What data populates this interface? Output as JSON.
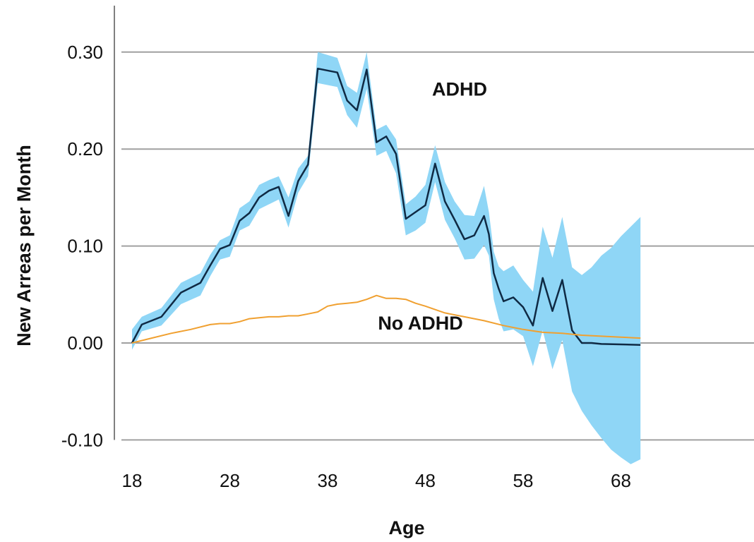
{
  "chart_data": {
    "type": "line",
    "xlabel": "Age",
    "ylabel": "New Arreas per Month",
    "xlim": [
      18,
      70
    ],
    "ylim": [
      -0.1,
      0.3
    ],
    "x_ticks": [
      18,
      28,
      38,
      48,
      58,
      68
    ],
    "y_ticks": [
      0.3,
      0.2,
      0.1,
      0.0,
      -0.1
    ],
    "y_tick_labels": [
      "0.30",
      "0.20",
      "0.10",
      "0.00",
      "-0.10"
    ],
    "grid": true,
    "colors": {
      "adhd_line": "#0f2a44",
      "adhd_band": "#8fd6f6",
      "no_adhd_line": "#f0a030",
      "grid": "#a0a0a0",
      "axis": "#808080"
    },
    "series": [
      {
        "name": "ADHD",
        "x": [
          18,
          19,
          21,
          23,
          25,
          26,
          27,
          28,
          29,
          30,
          31,
          32,
          33,
          34,
          35,
          36,
          37,
          39,
          40,
          41,
          42,
          43,
          44,
          45,
          46,
          47,
          48,
          49,
          50,
          51,
          52,
          53,
          54,
          54.5,
          55,
          55.5,
          56,
          57,
          58,
          59,
          60,
          61,
          62,
          63,
          64,
          65,
          66,
          70
        ],
        "y": [
          0.0,
          0.019,
          0.027,
          0.052,
          0.062,
          0.08,
          0.097,
          0.101,
          0.126,
          0.134,
          0.15,
          0.157,
          0.161,
          0.131,
          0.167,
          0.184,
          0.283,
          0.279,
          0.25,
          0.24,
          0.282,
          0.207,
          0.213,
          0.195,
          0.128,
          0.135,
          0.142,
          0.185,
          0.146,
          0.127,
          0.107,
          0.111,
          0.131,
          0.112,
          0.072,
          0.056,
          0.043,
          0.047,
          0.037,
          0.018,
          0.067,
          0.033,
          0.065,
          0.013,
          0.0,
          0.0,
          -0.001,
          -0.002
        ]
      },
      {
        "name": "No ADHD",
        "x": [
          18,
          20,
          22,
          24,
          26,
          27,
          28,
          29,
          30,
          31,
          32,
          33,
          34,
          35,
          36,
          37,
          38,
          39,
          40,
          41,
          42,
          43,
          44,
          45,
          46,
          47,
          48,
          50,
          52,
          54,
          56,
          58,
          60,
          62,
          64,
          66,
          68,
          70
        ],
        "y": [
          0.0,
          0.005,
          0.01,
          0.014,
          0.019,
          0.02,
          0.02,
          0.022,
          0.025,
          0.026,
          0.027,
          0.027,
          0.028,
          0.028,
          0.03,
          0.032,
          0.038,
          0.04,
          0.041,
          0.042,
          0.045,
          0.049,
          0.046,
          0.046,
          0.045,
          0.041,
          0.038,
          0.031,
          0.027,
          0.023,
          0.018,
          0.014,
          0.011,
          0.01,
          0.008,
          0.007,
          0.006,
          0.005
        ]
      }
    ],
    "confidence_band": {
      "series": "ADHD",
      "x": [
        18,
        19,
        21,
        23,
        25,
        26,
        27,
        28,
        29,
        30,
        31,
        32,
        33,
        34,
        35,
        36,
        37,
        39,
        40,
        41,
        42,
        43,
        44,
        45,
        46,
        47,
        48,
        49,
        50,
        51,
        52,
        53,
        54,
        54.5,
        55,
        55.5,
        56,
        57,
        58,
        59,
        60,
        61,
        62,
        63,
        64,
        65,
        66,
        67,
        68,
        69,
        70
      ],
      "upper": [
        0.014,
        0.027,
        0.036,
        0.062,
        0.072,
        0.091,
        0.106,
        0.111,
        0.139,
        0.146,
        0.163,
        0.168,
        0.172,
        0.15,
        0.18,
        0.193,
        0.3,
        0.294,
        0.265,
        0.258,
        0.3,
        0.22,
        0.225,
        0.21,
        0.143,
        0.151,
        0.163,
        0.204,
        0.166,
        0.146,
        0.132,
        0.131,
        0.162,
        0.135,
        0.094,
        0.079,
        0.074,
        0.08,
        0.065,
        0.053,
        0.12,
        0.088,
        0.13,
        0.078,
        0.07,
        0.078,
        0.09,
        0.098,
        0.11,
        0.12,
        0.13
      ],
      "lower": [
        -0.007,
        0.012,
        0.018,
        0.04,
        0.049,
        0.069,
        0.086,
        0.089,
        0.116,
        0.121,
        0.138,
        0.143,
        0.148,
        0.119,
        0.155,
        0.172,
        0.268,
        0.264,
        0.235,
        0.222,
        0.262,
        0.193,
        0.198,
        0.175,
        0.111,
        0.116,
        0.124,
        0.166,
        0.127,
        0.108,
        0.086,
        0.087,
        0.101,
        0.09,
        0.045,
        0.025,
        0.012,
        0.014,
        0.007,
        -0.024,
        0.013,
        -0.027,
        0.003,
        -0.05,
        -0.07,
        -0.085,
        -0.098,
        -0.11,
        -0.118,
        -0.125,
        -0.12
      ]
    },
    "annotations": [
      {
        "text": "ADHD",
        "x": 51.5,
        "y": 0.255
      },
      {
        "text": "No ADHD",
        "x": 47.5,
        "y": 0.014
      }
    ]
  }
}
